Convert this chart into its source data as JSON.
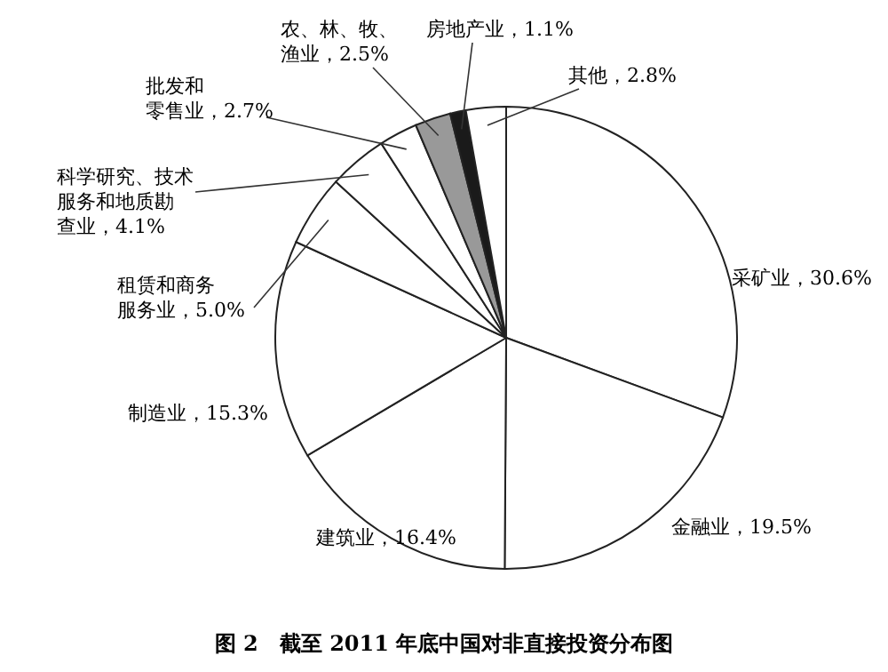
{
  "chart_data": {
    "type": "pie",
    "title": "图 2　截至 2011 年底中国对非直接投资分布图",
    "categories": [
      "采矿业",
      "金融业",
      "建筑业",
      "制造业",
      "租赁和商务服务业",
      "科学研究、技术服务和地质勘查业",
      "批发和零售业",
      "农、林、牧、渔业",
      "房地产业",
      "其他"
    ],
    "values": [
      30.6,
      19.5,
      16.4,
      15.3,
      5.0,
      4.1,
      2.7,
      2.5,
      1.1,
      2.8
    ],
    "value_labels": [
      "30.6%",
      "19.5%",
      "16.4%",
      "15.3%",
      "5.0%",
      "4.1%",
      "2.7%",
      "2.5%",
      "1.1%",
      "2.8%"
    ],
    "colors": [
      "#ffffff",
      "#ffffff",
      "#ffffff",
      "#ffffff",
      "#ffffff",
      "#ffffff",
      "#ffffff",
      "#999999",
      "#1a1a1a",
      "#ffffff"
    ]
  }
}
